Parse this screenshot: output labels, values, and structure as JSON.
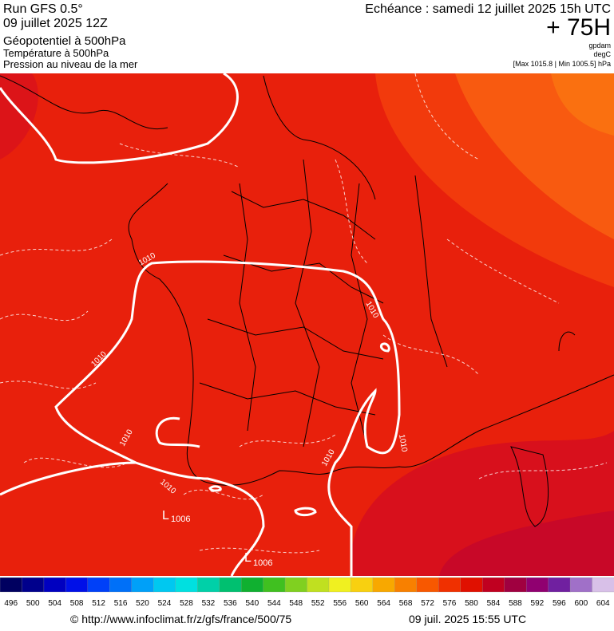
{
  "header": {
    "run": "Run GFS 0.5°",
    "run_date": "09 juillet 2025 12Z",
    "field1": "Géopotentiel à 500hPa",
    "field2": "Température à 500hPa",
    "field3": "Pression au niveau de la mer",
    "forecast": "Echéance : samedi 12 juillet 2025 15h UTC",
    "lead": "+ 75H",
    "unit1": "gpdam",
    "unit2": "degC",
    "extremes": "[Max 1015.8 | Min 1005.5] hPa"
  },
  "map": {
    "isobar_labels": [
      1010,
      1010,
      1010,
      1010,
      1010,
      1010,
      1010
    ],
    "lows": [
      {
        "symbol": "L",
        "value": 1006
      },
      {
        "symbol": "L",
        "value": 1006
      }
    ]
  },
  "colorbar": {
    "labels": [
      496,
      500,
      504,
      508,
      512,
      516,
      520,
      524,
      528,
      532,
      536,
      540,
      544,
      548,
      552,
      556,
      560,
      564,
      568,
      572,
      576,
      580,
      584,
      588,
      592,
      596,
      600,
      604
    ],
    "colors": [
      "#000060",
      "#00008c",
      "#0000c0",
      "#0010e8",
      "#0040f8",
      "#0070f8",
      "#00a0f8",
      "#00c8f0",
      "#00e0e0",
      "#00d0a8",
      "#00c070",
      "#10b030",
      "#40c020",
      "#80d020",
      "#c0e020",
      "#f0f020",
      "#f8d010",
      "#f8a800",
      "#f88000",
      "#f85800",
      "#f03000",
      "#e01000",
      "#c00020",
      "#a00040",
      "#900070",
      "#7020a0",
      "#a070c8",
      "#d8c0e8"
    ]
  },
  "footer": {
    "source": "© http://www.infoclimat.fr/z/gfs/france/500/75",
    "created": "09 juil. 2025 15:55 UTC"
  }
}
